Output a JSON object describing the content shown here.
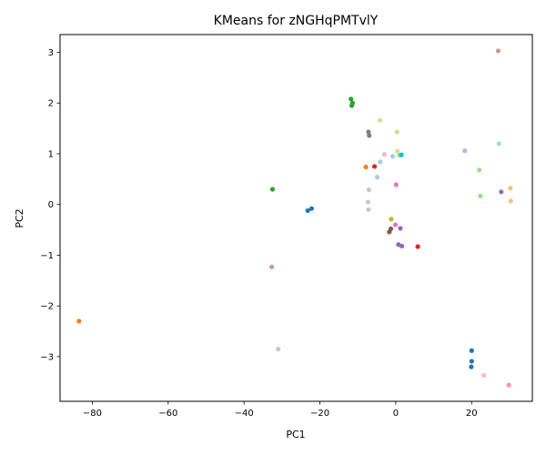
{
  "chart_data": {
    "type": "scatter",
    "title": "KMeans for zNGHqPMTvlY",
    "xlabel": "PC1",
    "ylabel": "PC2",
    "xlim": [
      -88.5,
      36
    ],
    "ylim": [
      -3.88,
      3.35
    ],
    "xticks": [
      -80,
      -60,
      -40,
      -20,
      0,
      20
    ],
    "xtick_labels": [
      "−80",
      "−60",
      "−40",
      "−20",
      "0",
      "20"
    ],
    "yticks": [
      -3,
      -2,
      -1,
      0,
      1,
      2,
      3
    ],
    "ytick_labels": [
      "−3",
      "−2",
      "−1",
      "0",
      "1",
      "2",
      "3"
    ],
    "grid": false,
    "legend": "none",
    "points": [
      {
        "x": -83.5,
        "y": -2.3,
        "color": "#ff7f0e"
      },
      {
        "x": -32.5,
        "y": 0.3,
        "color": "#2ca02c"
      },
      {
        "x": -32.7,
        "y": -1.23,
        "color": "#c49c94"
      },
      {
        "x": -31.0,
        "y": -2.85,
        "color": "#c7c7c7"
      },
      {
        "x": -23.2,
        "y": -0.12,
        "color": "#1f77b4"
      },
      {
        "x": -22.2,
        "y": -0.08,
        "color": "#1f77b4"
      },
      {
        "x": -11.8,
        "y": 2.08,
        "color": "#2ca02c"
      },
      {
        "x": -11.4,
        "y": 2.0,
        "color": "#2ca02c"
      },
      {
        "x": -11.6,
        "y": 1.95,
        "color": "#2ca02c"
      },
      {
        "x": -4.2,
        "y": 1.66,
        "color": "#dbdb8d"
      },
      {
        "x": 0.3,
        "y": 1.43,
        "color": "#dbdb8d"
      },
      {
        "x": -7.2,
        "y": 1.43,
        "color": "#7f7f7f"
      },
      {
        "x": -7.0,
        "y": 1.36,
        "color": "#7f7f7f"
      },
      {
        "x": -3.0,
        "y": 0.99,
        "color": "#f7b6d2"
      },
      {
        "x": -0.8,
        "y": 0.95,
        "color": "#aec7e8"
      },
      {
        "x": 0.4,
        "y": 1.05,
        "color": "#dbdb8d"
      },
      {
        "x": 1.0,
        "y": 0.97,
        "color": "#98df8a"
      },
      {
        "x": 1.5,
        "y": 0.98,
        "color": "#17becf"
      },
      {
        "x": -4.1,
        "y": 0.84,
        "color": "#aec7e8"
      },
      {
        "x": -5.6,
        "y": 0.75,
        "color": "#d62728"
      },
      {
        "x": -7.9,
        "y": 0.74,
        "color": "#ff7f0e"
      },
      {
        "x": -4.9,
        "y": 0.54,
        "color": "#aec7e8"
      },
      {
        "x": -7.1,
        "y": 0.29,
        "color": "#c7c7c7"
      },
      {
        "x": -7.3,
        "y": 0.05,
        "color": "#c7c7c7"
      },
      {
        "x": -7.2,
        "y": -0.1,
        "color": "#c7c7c7"
      },
      {
        "x": 0.1,
        "y": 0.39,
        "color": "#e377c2"
      },
      {
        "x": -1.2,
        "y": -0.29,
        "color": "#bcbd22"
      },
      {
        "x": -0.1,
        "y": -0.4,
        "color": "#e377c2"
      },
      {
        "x": 1.2,
        "y": -0.47,
        "color": "#9467bd"
      },
      {
        "x": -1.3,
        "y": -0.48,
        "color": "#8c564b"
      },
      {
        "x": -1.7,
        "y": -0.54,
        "color": "#8c564b"
      },
      {
        "x": 0.7,
        "y": -0.79,
        "color": "#9467bd"
      },
      {
        "x": 1.6,
        "y": -0.82,
        "color": "#9467bd"
      },
      {
        "x": 5.8,
        "y": -0.83,
        "color": "#d62728"
      },
      {
        "x": 18.2,
        "y": 1.06,
        "color": "#c5b0d5"
      },
      {
        "x": 27.2,
        "y": 1.2,
        "color": "#9edae5"
      },
      {
        "x": 27.0,
        "y": 3.03,
        "color": "#c49c94"
      },
      {
        "x": 22.0,
        "y": 0.68,
        "color": "#98df8a"
      },
      {
        "x": 22.3,
        "y": 0.17,
        "color": "#98df8a"
      },
      {
        "x": 30.2,
        "y": 0.32,
        "color": "#ffbb78"
      },
      {
        "x": 30.3,
        "y": 0.07,
        "color": "#ffbb78"
      },
      {
        "x": 27.8,
        "y": 0.25,
        "color": "#9467bd"
      },
      {
        "x": 20.0,
        "y": -2.88,
        "color": "#1f77b4"
      },
      {
        "x": 20.0,
        "y": -3.09,
        "color": "#1f77b4"
      },
      {
        "x": 19.9,
        "y": -3.2,
        "color": "#1f77b4"
      },
      {
        "x": 23.2,
        "y": -3.37,
        "color": "#f7b6d2"
      },
      {
        "x": 29.8,
        "y": -3.56,
        "color": "#ff9896"
      }
    ]
  }
}
